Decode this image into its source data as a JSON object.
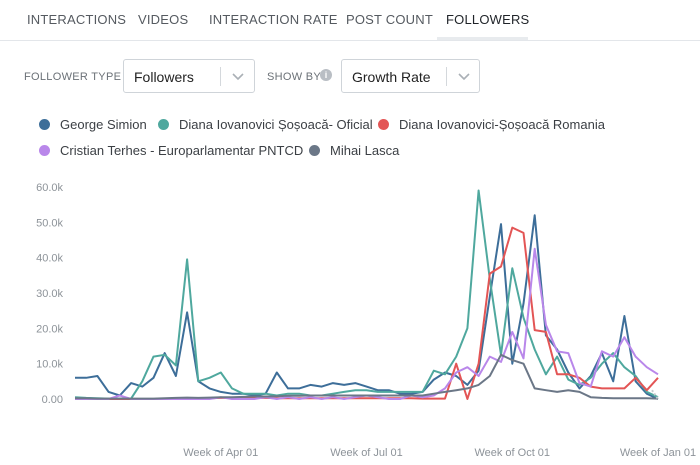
{
  "tabs": [
    {
      "label": "INTERACTIONS"
    },
    {
      "label": "VIDEOS"
    },
    {
      "label": "INTERACTION RATE"
    },
    {
      "label": "POST COUNT"
    },
    {
      "label": "FOLLOWERS",
      "active": true
    }
  ],
  "filters": {
    "follower_type": {
      "label": "FOLLOWER TYPE",
      "value": "Followers"
    },
    "show_by": {
      "label": "SHOW BY",
      "value": "Growth Rate",
      "info_icon": "info-icon"
    }
  },
  "legend": [
    {
      "name": "George Simion",
      "color": "#3d6e99"
    },
    {
      "name": "Diana Iovanovici Șoșoacă- Oficial",
      "color": "#4fa89e"
    },
    {
      "name": "Diana Iovanovici-Șoșoacă Romania",
      "color": "#e35555"
    },
    {
      "name": "Cristian Terhes - Europarlamentar PNTCD",
      "color": "#b987ea"
    },
    {
      "name": "Mihai Lasca",
      "color": "#6b7787"
    }
  ],
  "chart_data": {
    "type": "line",
    "title": "",
    "xlabel": "",
    "ylabel": "",
    "ylim": [
      0,
      60000
    ],
    "y_ticks": [
      "0.00",
      "10.0k",
      "20.0k",
      "30.0k",
      "40.0k",
      "50.0k",
      "60.0k"
    ],
    "x_ticks": [
      {
        "label": "Week of Apr 01",
        "week": 13
      },
      {
        "label": "Week of Jul 01",
        "week": 26
      },
      {
        "label": "Week of Oct 01",
        "week": 39
      },
      {
        "label": "Week of Jan 01",
        "week": 52
      }
    ],
    "x_range": [
      0,
      52
    ],
    "series": [
      {
        "name": "George Simion",
        "color": "#3d6e99",
        "values": [
          6000,
          6000,
          6500,
          2000,
          1000,
          4500,
          3500,
          6000,
          13000,
          6500,
          24500,
          5000,
          3000,
          2000,
          1500,
          1500,
          1000,
          1500,
          7500,
          3000,
          3000,
          4000,
          3500,
          4500,
          4000,
          4500,
          3500,
          2500,
          2500,
          1500,
          1500,
          2000,
          5500,
          7500,
          6500,
          4000,
          8000,
          29000,
          49500,
          10000,
          27000,
          52000,
          18000,
          14000,
          7500,
          3000,
          6500,
          13000,
          5000,
          23500,
          5000,
          1500,
          0
        ]
      },
      {
        "name": "Diana Iovanovici Șoșoacă- Oficial",
        "color": "#4fa89e",
        "values": [
          500,
          300,
          200,
          100,
          100,
          100,
          5000,
          12000,
          12500,
          9500,
          39500,
          5000,
          6000,
          7500,
          3000,
          1500,
          1500,
          1500,
          1000,
          1500,
          1500,
          1000,
          1000,
          1500,
          2000,
          2500,
          2500,
          2000,
          2000,
          2000,
          2000,
          2000,
          8000,
          7000,
          12000,
          20000,
          59000,
          34000,
          12500,
          37000,
          23000,
          14000,
          7000,
          12000,
          5500,
          4000,
          6000,
          10000,
          13000,
          9000,
          6500,
          2000,
          500
        ]
      },
      {
        "name": "Diana Iovanovici-Șoșoacă Romania",
        "color": "#e35555",
        "values": [
          0,
          0,
          0,
          0,
          0,
          0,
          0,
          0,
          0,
          0,
          0,
          100,
          200,
          300,
          300,
          300,
          300,
          300,
          200,
          200,
          200,
          200,
          200,
          200,
          200,
          200,
          200,
          200,
          200,
          200,
          200,
          100,
          100,
          100,
          10000,
          0,
          10000,
          35500,
          37500,
          48500,
          47000,
          19500,
          19000,
          7000,
          7000,
          6000,
          3500,
          3000,
          3000,
          3000,
          6000,
          2500,
          6000
        ]
      },
      {
        "name": "Cristian Terhes - Europarlamentar PNTCD",
        "color": "#b987ea",
        "values": [
          0,
          0,
          0,
          0,
          1000,
          0,
          0,
          0,
          0,
          0,
          0,
          0,
          0,
          500,
          0,
          0,
          0,
          500,
          0,
          500,
          0,
          500,
          0,
          500,
          0,
          500,
          1000,
          500,
          0,
          0,
          1000,
          500,
          1000,
          3000,
          7500,
          9000,
          6500,
          12000,
          10500,
          19000,
          11500,
          42500,
          21000,
          13500,
          13000,
          4500,
          3500,
          13500,
          12000,
          17500,
          12000,
          9000,
          7000
        ]
      },
      {
        "name": "Mihai Lasca",
        "color": "#6b7787",
        "values": [
          200,
          200,
          100,
          100,
          100,
          100,
          100,
          100,
          200,
          300,
          400,
          300,
          400,
          500,
          500,
          600,
          700,
          700,
          800,
          900,
          900,
          1000,
          1000,
          1000,
          1000,
          1000,
          1000,
          1000,
          1000,
          1000,
          1000,
          1000,
          1500,
          2000,
          2500,
          3000,
          4000,
          6500,
          12500,
          11000,
          10000,
          3000,
          2500,
          2000,
          2500,
          2000,
          500,
          300,
          200,
          200,
          200,
          200,
          100
        ]
      }
    ]
  }
}
